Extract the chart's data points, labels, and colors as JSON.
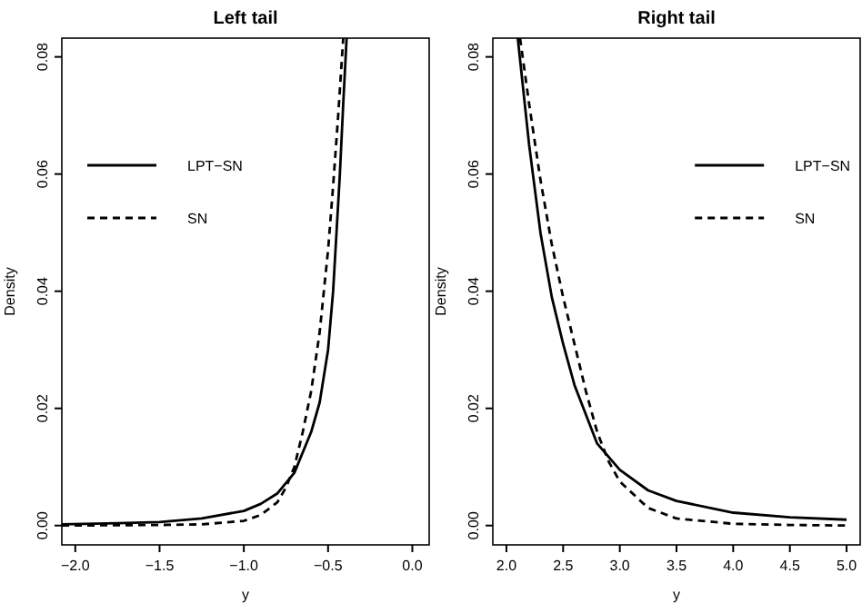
{
  "chart_data": [
    {
      "type": "line",
      "title": "Left tail",
      "xlabel": "y",
      "ylabel": "Density",
      "xlim": [
        -2.08,
        0.1
      ],
      "xticks": [
        {
          "value": -2,
          "label": "−2.0"
        },
        {
          "value": -1.5,
          "label": "−1.5"
        },
        {
          "value": -1,
          "label": "−1.0"
        },
        {
          "value": -0.5,
          "label": "−0.5"
        },
        {
          "value": 0,
          "label": "0.0"
        }
      ],
      "ylim": [
        -0.0033,
        0.0832
      ],
      "yticks": [
        {
          "value": 0,
          "label": "0.00"
        },
        {
          "value": 0.02,
          "label": "0.02"
        },
        {
          "value": 0.04,
          "label": "0.04"
        },
        {
          "value": 0.06,
          "label": "0.06"
        },
        {
          "value": 0.08,
          "label": "0.08"
        }
      ],
      "grid": false,
      "legend": "top left",
      "series": [
        {
          "name": "LPT−SN",
          "color": "#000000",
          "line_style": "solid",
          "x": [
            -2.08,
            -1.75,
            -1.5,
            -1.25,
            -1.0,
            -0.9,
            -0.8,
            -0.7,
            -0.6,
            -0.55,
            -0.5,
            -0.47,
            -0.45,
            -0.43,
            -0.41,
            -0.39
          ],
          "values": [
            0.0002,
            0.0004,
            0.0006,
            0.0012,
            0.0025,
            0.0037,
            0.0055,
            0.009,
            0.016,
            0.021,
            0.03,
            0.04,
            0.05,
            0.06,
            0.072,
            0.0832
          ]
        },
        {
          "name": "SN",
          "color": "#000000",
          "line_style": "dashed",
          "x": [
            -2.08,
            -1.5,
            -1.25,
            -1.0,
            -0.9,
            -0.8,
            -0.75,
            -0.7,
            -0.65,
            -0.6,
            -0.55,
            -0.5,
            -0.47,
            -0.44,
            -0.41
          ],
          "values": [
            0,
            0.0001,
            0.0002,
            0.0008,
            0.0018,
            0.004,
            0.0065,
            0.01,
            0.016,
            0.023,
            0.033,
            0.047,
            0.058,
            0.07,
            0.0832
          ]
        }
      ]
    },
    {
      "type": "line",
      "title": "Right tail",
      "xlabel": "y",
      "ylabel": "Density",
      "xlim": [
        1.88,
        5.12
      ],
      "xticks": [
        {
          "value": 2,
          "label": "2.0"
        },
        {
          "value": 2.5,
          "label": "2.5"
        },
        {
          "value": 3,
          "label": "3.0"
        },
        {
          "value": 3.5,
          "label": "3.5"
        },
        {
          "value": 4,
          "label": "4.0"
        },
        {
          "value": 4.5,
          "label": "4.5"
        },
        {
          "value": 5,
          "label": "5.0"
        }
      ],
      "ylim": [
        -0.0033,
        0.0832
      ],
      "yticks": [
        {
          "value": 0,
          "label": "0.00"
        },
        {
          "value": 0.02,
          "label": "0.02"
        },
        {
          "value": 0.04,
          "label": "0.04"
        },
        {
          "value": 0.06,
          "label": "0.06"
        },
        {
          "value": 0.08,
          "label": "0.08"
        }
      ],
      "grid": false,
      "legend": "top right",
      "series": [
        {
          "name": "LPT−SN",
          "color": "#000000",
          "line_style": "solid",
          "x": [
            2.1,
            2.2,
            2.3,
            2.4,
            2.5,
            2.6,
            2.8,
            3.0,
            3.25,
            3.5,
            4.0,
            4.5,
            5.0
          ],
          "values": [
            0.0832,
            0.065,
            0.05,
            0.039,
            0.031,
            0.024,
            0.014,
            0.0095,
            0.006,
            0.0042,
            0.0022,
            0.0014,
            0.001
          ]
        },
        {
          "name": "SN",
          "color": "#000000",
          "line_style": "dashed",
          "x": [
            2.12,
            2.2,
            2.3,
            2.4,
            2.5,
            2.6,
            2.7,
            2.8,
            2.9,
            3.0,
            3.25,
            3.5,
            4.0,
            4.5,
            5.0
          ],
          "values": [
            0.0832,
            0.072,
            0.059,
            0.048,
            0.039,
            0.031,
            0.023,
            0.016,
            0.011,
            0.0075,
            0.003,
            0.0012,
            0.0003,
            0.0001,
            0
          ]
        }
      ]
    }
  ]
}
